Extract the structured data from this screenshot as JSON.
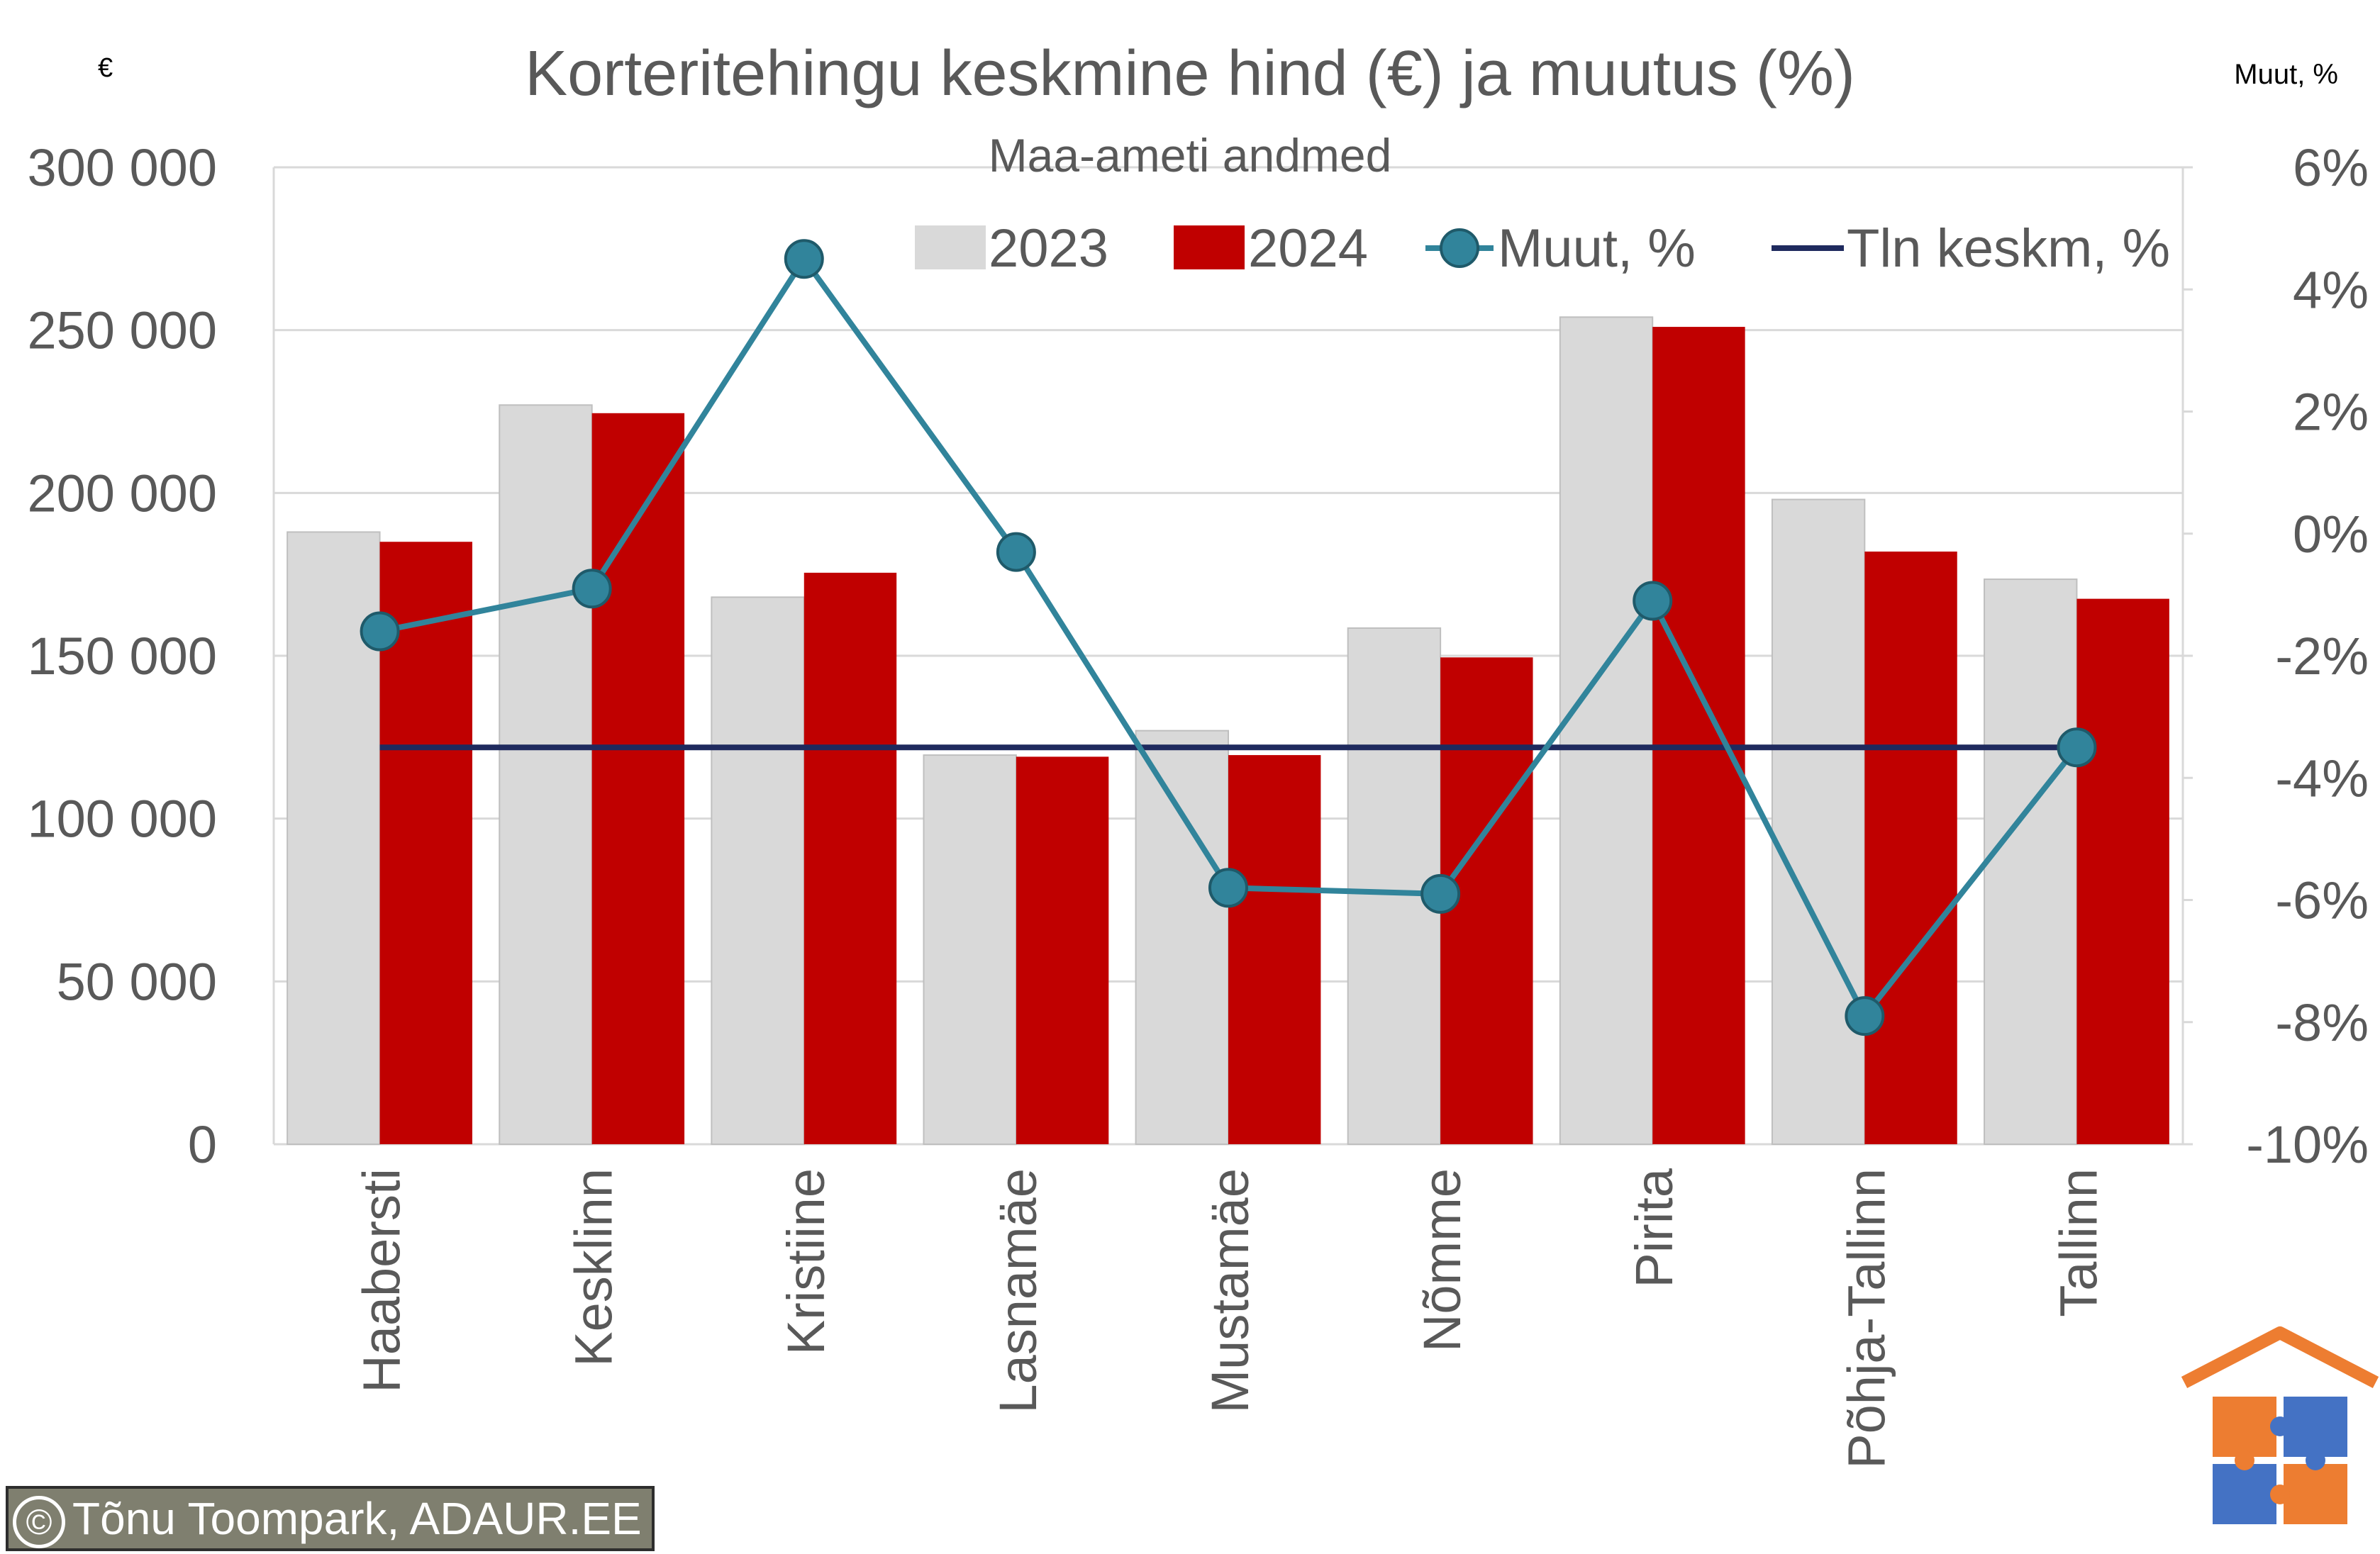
{
  "chart_data": {
    "type": "bar",
    "title": "Korteritehingu keskmine hind (€) ja muutus (%)",
    "subtitle": "Maa-ameti andmed",
    "y_left_unit": "€",
    "y_right_unit": "Muut, %",
    "categories": [
      "Haabersti",
      "Kesklinn",
      "Kristiine",
      "Lasnamäe",
      "Mustamäe",
      "Nõmme",
      "Pirita",
      "Põhja-Tallinn",
      "Tallinn"
    ],
    "series": [
      {
        "name": "2023",
        "type": "bar",
        "axis": "left",
        "color": "#d9d9d9",
        "values": [
          188000,
          227000,
          168000,
          119500,
          127000,
          158500,
          254000,
          198000,
          173500
        ]
      },
      {
        "name": "2024",
        "type": "bar",
        "axis": "left",
        "color": "#c00000",
        "values": [
          185000,
          224500,
          175500,
          119000,
          119500,
          149500,
          251000,
          182000,
          167500
        ]
      },
      {
        "name": "Muut, %",
        "type": "line",
        "axis": "right",
        "color": "#31849b",
        "values": [
          -1.6,
          -0.9,
          4.5,
          -0.3,
          -5.8,
          -5.9,
          -1.1,
          -7.9,
          -3.5
        ]
      },
      {
        "name": "Tln keskm, %",
        "type": "line",
        "axis": "right",
        "color": "#1f2a5e",
        "values": [
          -3.5,
          -3.5,
          -3.5,
          -3.5,
          -3.5,
          -3.5,
          -3.5,
          -3.5,
          -3.5
        ]
      }
    ],
    "y_left_ticks": [
      "0",
      "50 000",
      "100 000",
      "150 000",
      "200 000",
      "250 000",
      "300 000"
    ],
    "y_left_range": [
      0,
      300000
    ],
    "y_right_ticks": [
      "-10%",
      "-8%",
      "-6%",
      "-4%",
      "-2%",
      "0%",
      "2%",
      "4%",
      "6%"
    ],
    "y_right_range": [
      -10,
      6
    ],
    "grid": true,
    "legend_position": "top"
  },
  "credit": "Tõnu Toompark, ADAUR.EE",
  "credit_symbol": "©"
}
